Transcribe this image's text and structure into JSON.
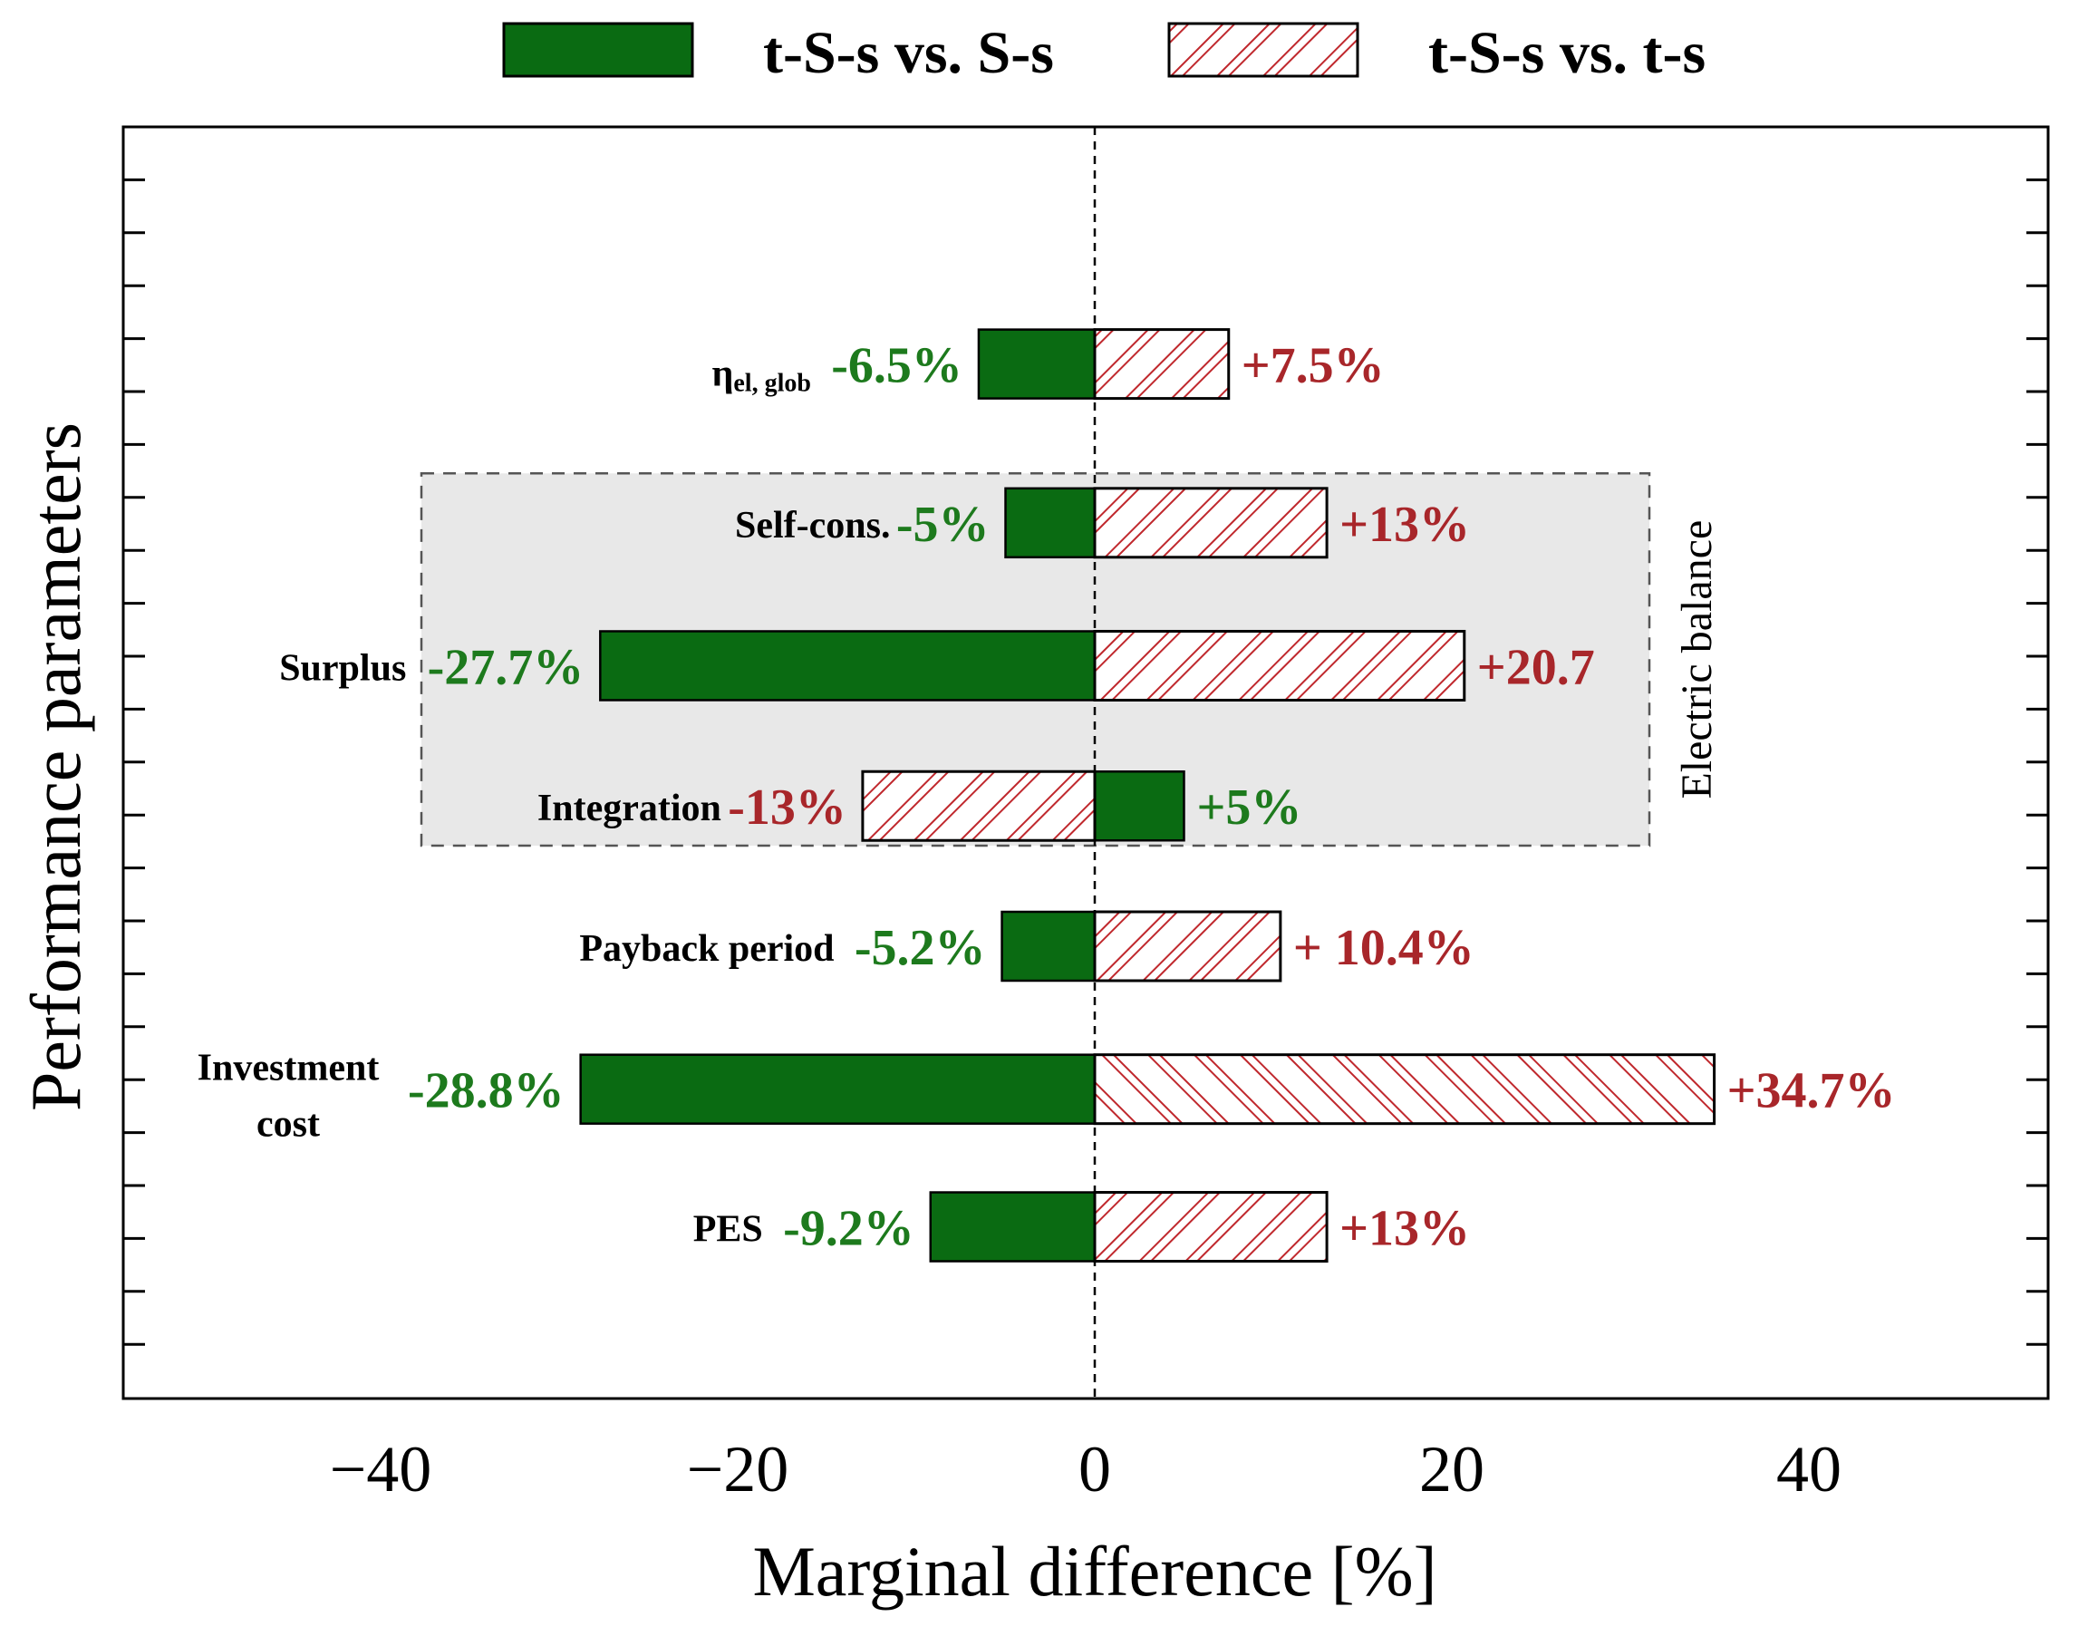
{
  "chart_data": {
    "type": "bar",
    "orientation": "horizontal",
    "xlabel": "Marginal difference [%]",
    "ylabel": "Performance parameters",
    "xlim": [
      -55,
      55
    ],
    "xticks": [
      -40,
      -20,
      0,
      20,
      40
    ],
    "xtick_labels": [
      "−40",
      "−20",
      "0",
      "20",
      "40"
    ],
    "legend": [
      {
        "name": "t-S-s vs. S-s",
        "style": "solid"
      },
      {
        "name": "t-S-s vs. t-s",
        "style": "hatched"
      }
    ],
    "categories": [
      {
        "id": "eta",
        "lines": [
          "η"
        ],
        "subscript": "el, glob",
        "slot": 4,
        "values": [
          -6.5,
          7.5
        ],
        "labels": [
          "-6.5%",
          "+7.5%"
        ]
      },
      {
        "id": "self-cons",
        "lines": [
          "Self-cons."
        ],
        "slot": 7,
        "values": [
          -5,
          13
        ],
        "labels": [
          "-5%",
          "+13%"
        ]
      },
      {
        "id": "surplus",
        "lines": [
          "Surplus"
        ],
        "slot": 9.7,
        "values": [
          -27.7,
          20.7
        ],
        "labels": [
          "-27.7%",
          "+20.7"
        ]
      },
      {
        "id": "integration",
        "lines": [
          "Integration"
        ],
        "slot": 12.35,
        "values": [
          5,
          -13
        ],
        "labels": [
          "+5%",
          "-13%"
        ]
      },
      {
        "id": "payback",
        "lines": [
          "Payback period"
        ],
        "slot": 15,
        "values": [
          -5.2,
          10.4
        ],
        "labels": [
          "-5.2%",
          "+ 10.4%"
        ]
      },
      {
        "id": "investment",
        "lines": [
          "Investment",
          "cost"
        ],
        "slot": 17.7,
        "values": [
          -28.8,
          34.7
        ],
        "labels": [
          "-28.8%",
          "+34.7%"
        ]
      },
      {
        "id": "pes",
        "lines": [
          "PES"
        ],
        "slot": 20.3,
        "values": [
          -9.2,
          13
        ],
        "labels": [
          "-9.2%",
          "+13%"
        ]
      }
    ],
    "group_box": {
      "label": "Electric balance",
      "from_slot": 6.1,
      "to_slot": 13.1
    },
    "colors": {
      "solid": "#0a6b12",
      "hatch": "#c0282d",
      "solid_text": "#1d7a1d",
      "hatch_text": "#a8262a"
    }
  }
}
